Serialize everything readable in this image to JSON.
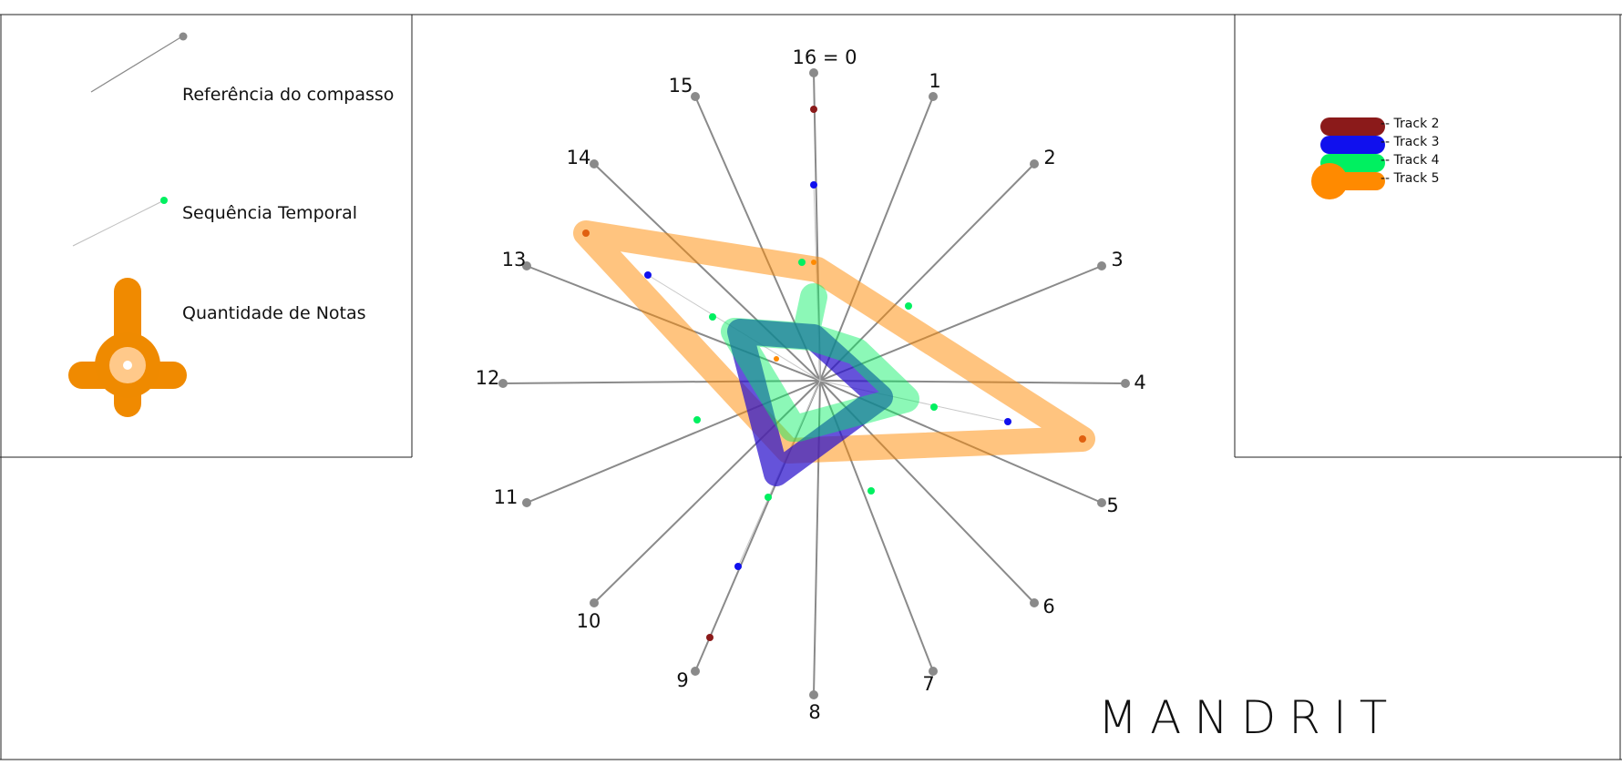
{
  "legend": {
    "reference_label": "Referência do compasso",
    "sequence_label": "Sequência Temporal",
    "quantity_label": "Quantidade de Notas"
  },
  "tracks": [
    {
      "label": "-- Track 2",
      "color": "#8b1a1a"
    },
    {
      "label": "-- Track 3",
      "color": "#1010ee"
    },
    {
      "label": "-- Track 4",
      "color": "#00f060"
    },
    {
      "label": "-- Track 5",
      "color": "#ff8a00"
    }
  ],
  "spoke_labels": [
    "16 = 0",
    "1",
    "2",
    "3",
    "4",
    "5",
    "6",
    "7",
    "8",
    "9",
    "10",
    "11",
    "12",
    "13",
    "14",
    "15"
  ],
  "brand": "MANDRIT",
  "colors": {
    "spoke": "#8a8a8a",
    "track2": "#8b1a1a",
    "track3": "#1010ee",
    "track4": "#00f060",
    "track5": "#ff8a00"
  }
}
